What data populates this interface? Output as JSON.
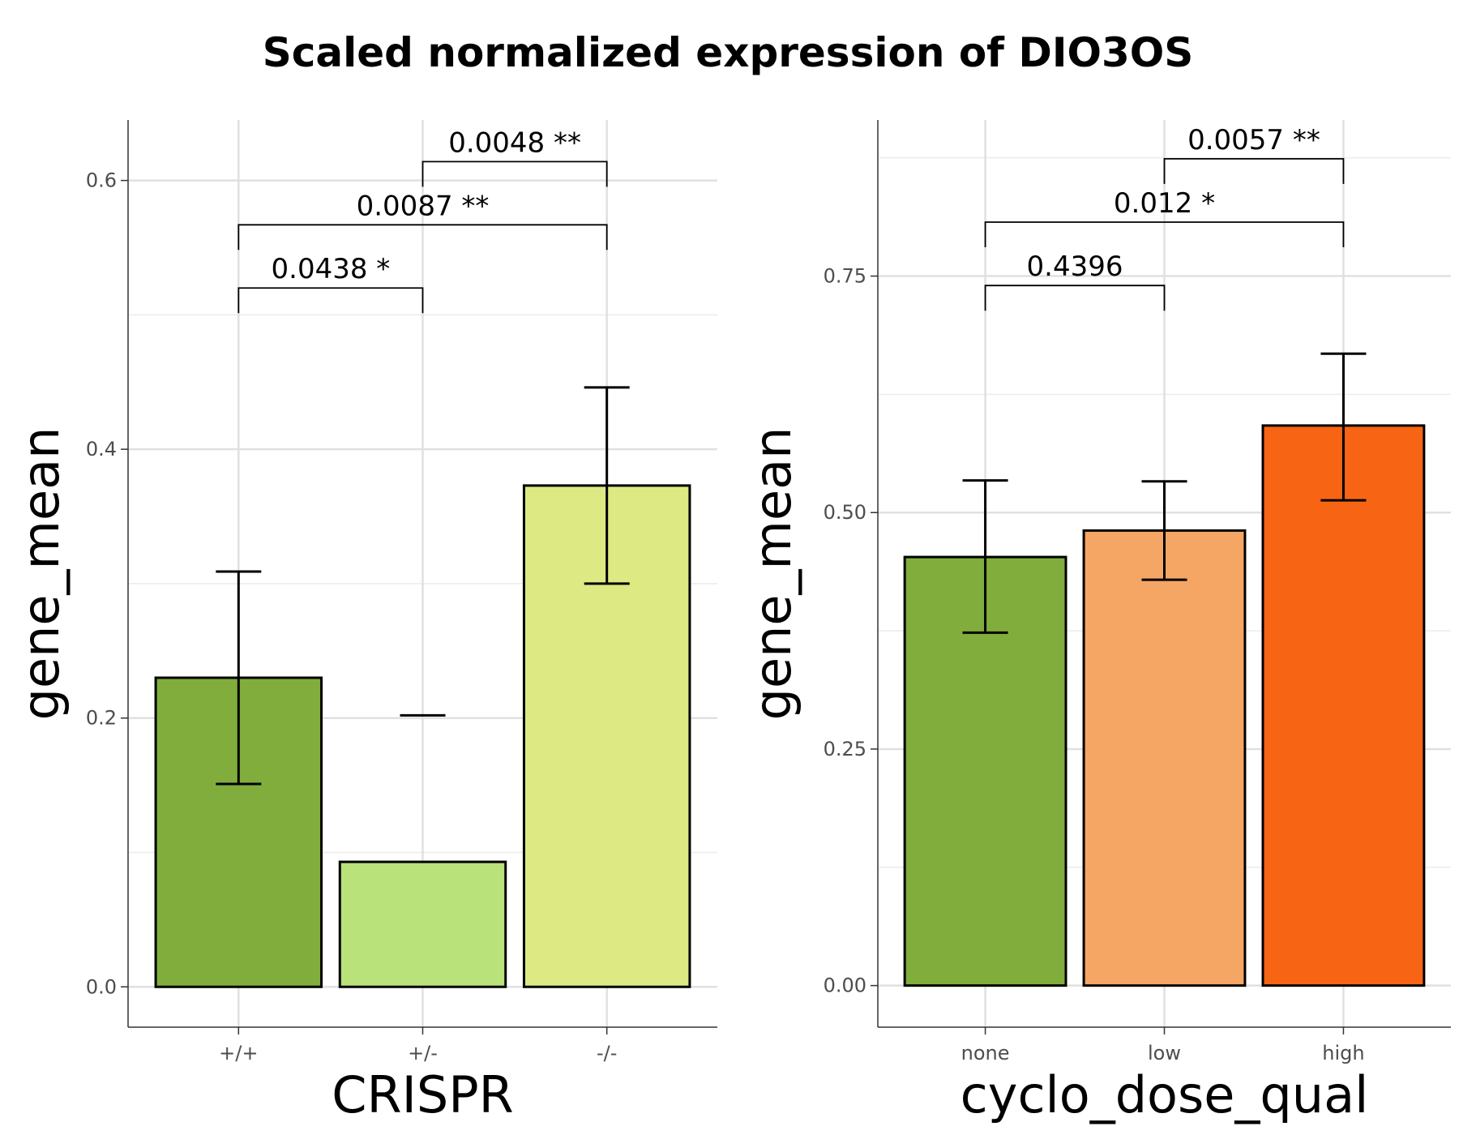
{
  "title": "Scaled normalized expression of DIO3OS",
  "chart_data": [
    {
      "type": "bar",
      "xlabel": "CRISPR",
      "ylabel": "gene_mean",
      "categories": [
        "+/+",
        "+/-",
        "-/-"
      ],
      "values": [
        0.23,
        0.093,
        0.373
      ],
      "error_low": [
        0.151,
        null,
        0.3
      ],
      "error_high": [
        0.309,
        0.202,
        0.446
      ],
      "colors": [
        "#80ad3c",
        "#b9e27b",
        "#dde982"
      ],
      "ylim": [
        -0.03,
        0.645
      ],
      "yticks": [
        0.0,
        0.2,
        0.4,
        0.6
      ],
      "ytick_labels": [
        "0.0",
        "0.2",
        "0.4",
        "0.6"
      ],
      "minor_yticks": [
        0.1,
        0.3,
        0.5
      ],
      "grid": true,
      "comparisons": [
        {
          "from": 0,
          "to": 1,
          "y": 0.52,
          "label": "0.0438 *"
        },
        {
          "from": 0,
          "to": 2,
          "y": 0.567,
          "label": "0.0087 **"
        },
        {
          "from": 1,
          "to": 2,
          "y": 0.614,
          "label": "0.0048 **"
        }
      ]
    },
    {
      "type": "bar",
      "xlabel": "cyclo_dose_qual",
      "ylabel": "gene_mean",
      "categories": [
        "none",
        "low",
        "high"
      ],
      "values": [
        0.453,
        0.481,
        0.592
      ],
      "error_low": [
        0.373,
        0.429,
        0.513
      ],
      "error_high": [
        0.534,
        0.533,
        0.668
      ],
      "colors": [
        "#80ad3c",
        "#f5a664",
        "#f76414"
      ],
      "ylim": [
        -0.044,
        0.915
      ],
      "yticks": [
        0.0,
        0.25,
        0.5,
        0.75
      ],
      "ytick_labels": [
        "0.00",
        "0.25",
        "0.50",
        "0.75"
      ],
      "minor_yticks": [
        0.125,
        0.375,
        0.625,
        0.875
      ],
      "grid": true,
      "comparisons": [
        {
          "from": 0,
          "to": 1,
          "y": 0.74,
          "label": "0.4396"
        },
        {
          "from": 0,
          "to": 2,
          "y": 0.807,
          "label": "0.012 *"
        },
        {
          "from": 1,
          "to": 2,
          "y": 0.874,
          "label": "0.0057 **"
        }
      ]
    }
  ]
}
